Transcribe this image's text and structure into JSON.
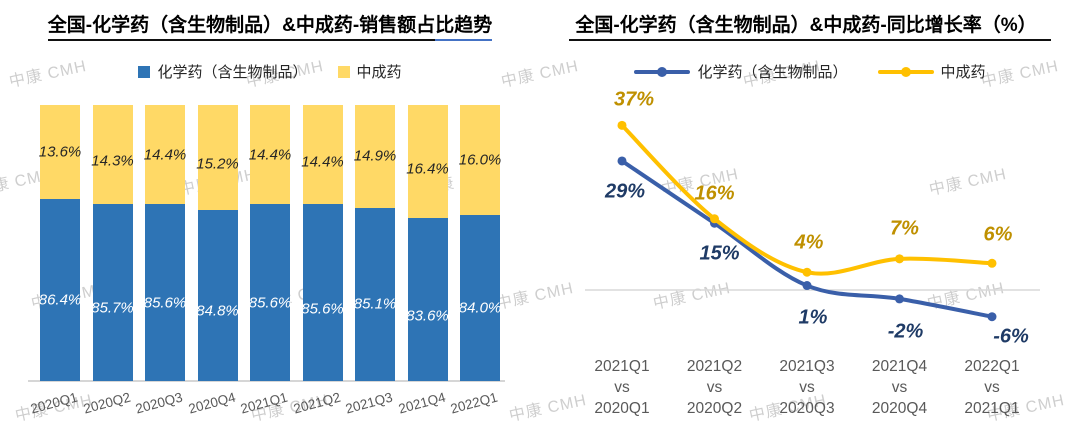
{
  "watermark_text": "中康 CMH",
  "chart_data": [
    {
      "type": "bar",
      "mode": "stacked-100-percent",
      "title_main": "全国-化学药（含生物制品）&中成药-销售额占",
      "title_tail": "比趋势",
      "title_full": "全国-化学药（含生物制品）&中成药-销售额占比趋势",
      "legend_position": "top",
      "visible_axis_min": 60,
      "visible_axis_max": 100,
      "categories": [
        "2020Q1",
        "2020Q2",
        "2020Q3",
        "2020Q4",
        "2021Q1",
        "2021Q2",
        "2021Q3",
        "2021Q4",
        "2022Q1"
      ],
      "series": [
        {
          "name": "化学药（含生物制品）",
          "color": "#2E74B5",
          "label_color": "#FFFFFF",
          "values": [
            86.4,
            85.7,
            85.6,
            84.8,
            85.6,
            85.6,
            85.1,
            83.6,
            84.0
          ],
          "labels": [
            "86.4%",
            "85.7%",
            "85.6%",
            "84.8%",
            "85.6%",
            "85.6%",
            "85.1%",
            "83.6%",
            "84.0%"
          ]
        },
        {
          "name": "中成药",
          "color": "#FFD966",
          "label_color": "#262626",
          "values": [
            13.6,
            14.3,
            14.4,
            15.2,
            14.4,
            14.4,
            14.9,
            16.4,
            16.0
          ],
          "labels": [
            "13.6%",
            "14.3%",
            "14.4%",
            "15.2%",
            "14.4%",
            "14.4%",
            "14.9%",
            "16.4%",
            "16.0%"
          ]
        }
      ]
    },
    {
      "type": "line",
      "title_full": "全国-化学药（含生物制品）&中成药-同比增长率（%）",
      "legend_position": "top",
      "zero_line": true,
      "categories": [
        {
          "period": "2021Q1",
          "vs": "vs",
          "base": "2020Q1"
        },
        {
          "period": "2021Q2",
          "vs": "vs",
          "base": "2020Q2"
        },
        {
          "period": "2021Q3",
          "vs": "vs",
          "base": "2020Q3"
        },
        {
          "period": "2021Q4",
          "vs": "vs",
          "base": "2020Q4"
        },
        {
          "period": "2022Q1",
          "vs": "vs",
          "base": "2021Q1"
        }
      ],
      "series": [
        {
          "name": "化学药（含生物制品）",
          "color": "#3A5FA9",
          "label_color": "#1F3B66",
          "values": [
            29,
            15,
            1,
            -2,
            -6
          ],
          "labels": [
            "29%",
            "15%",
            "1%",
            "-2%",
            "-6%"
          ]
        },
        {
          "name": "中成药",
          "color": "#FFC000",
          "label_color": "#BF9000",
          "values": [
            37,
            16,
            4,
            7,
            6
          ],
          "labels": [
            "37%",
            "16%",
            "4%",
            "7%",
            "6%"
          ]
        }
      ]
    }
  ]
}
